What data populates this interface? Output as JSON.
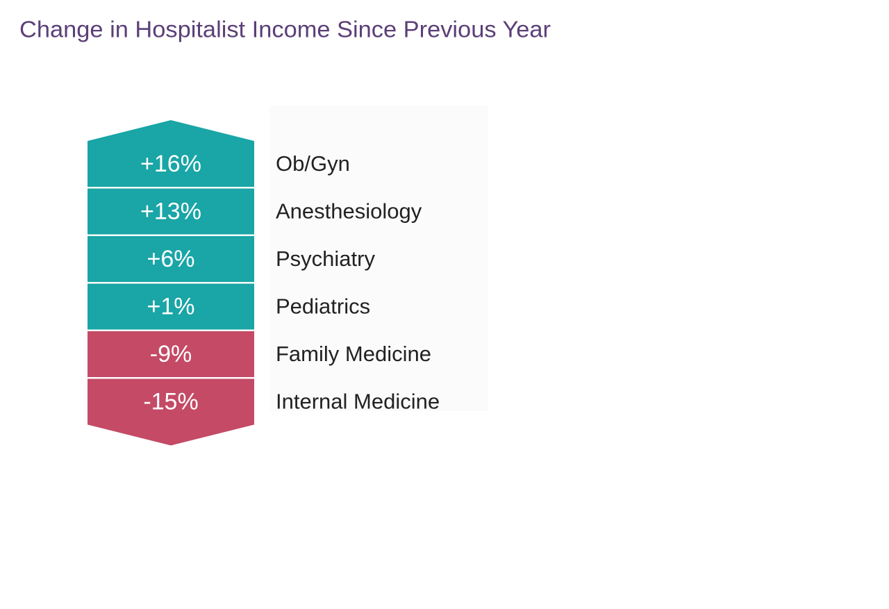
{
  "chart_data": {
    "type": "arrow-stack",
    "title": "Change in Hospitalist Income Since Previous Year",
    "categories": [
      "Ob/Gyn",
      "Anesthesiology",
      "Psychiatry",
      "Pediatrics",
      "Family Medicine",
      "Internal Medicine"
    ],
    "values": [
      16,
      13,
      6,
      1,
      -9,
      -15
    ],
    "value_labels": [
      "+16%",
      "+13%",
      "+6%",
      "+1%",
      "-9%",
      "-15%"
    ],
    "colors": [
      "#1aa5a6",
      "#1aa5a6",
      "#1aa5a6",
      "#1aa5a6",
      "#c44a66",
      "#c44a66"
    ]
  }
}
